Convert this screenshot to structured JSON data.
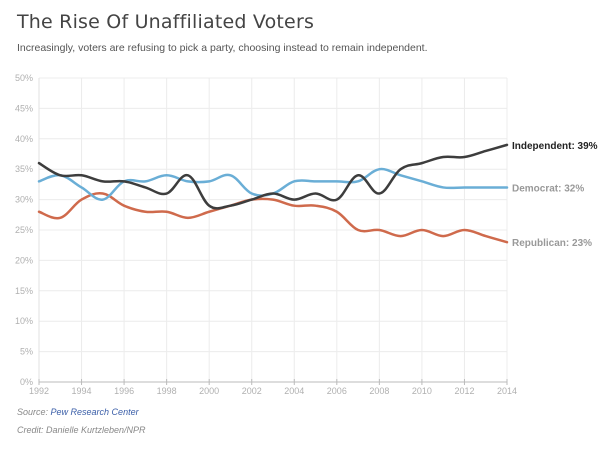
{
  "title": "The Rise Of Unaffiliated Voters",
  "subtitle": "Increasingly, voters are refusing to pick a party, choosing instead to remain independent.",
  "footer": {
    "source_prefix": "Source: ",
    "source_link": "Pew Research Center",
    "credit": "Credit: Danielle Kurtzleben/NPR"
  },
  "chart_data": {
    "type": "line",
    "title": "The Rise Of Unaffiliated Voters",
    "xlabel": "",
    "ylabel": "",
    "x": [
      1992,
      1993,
      1994,
      1995,
      1996,
      1997,
      1998,
      1999,
      2000,
      2001,
      2002,
      2003,
      2004,
      2005,
      2006,
      2007,
      2008,
      2009,
      2010,
      2011,
      2012,
      2013,
      2014
    ],
    "xlim": [
      1992,
      2014
    ],
    "ylim": [
      0,
      50
    ],
    "x_ticks": [
      "1992",
      "1994",
      "1996",
      "1998",
      "2000",
      "2002",
      "2004",
      "2006",
      "2008",
      "2010",
      "2012",
      "2014"
    ],
    "y_ticks": [
      "0%",
      "5%",
      "10%",
      "15%",
      "20%",
      "25%",
      "30%",
      "35%",
      "40%",
      "45%",
      "50%"
    ],
    "grid": true,
    "legend": "end-of-line labels (right)",
    "series": [
      {
        "name": "Independent",
        "label": "Independent: 39%",
        "color": "#3d3d3d",
        "label_color": "#222222",
        "values": [
          36,
          34,
          34,
          33,
          33,
          32,
          31,
          34,
          29,
          29,
          30,
          31,
          30,
          31,
          30,
          34,
          31,
          35,
          36,
          37,
          37,
          38,
          39
        ]
      },
      {
        "name": "Democrat",
        "label": "Democrat: 32%",
        "color": "#6aaed6",
        "label_color": "#999999",
        "values": [
          33,
          34,
          32,
          30,
          33,
          33,
          34,
          33,
          33,
          34,
          31,
          31,
          33,
          33,
          33,
          33,
          35,
          34,
          33,
          32,
          32,
          32,
          32
        ]
      },
      {
        "name": "Republican",
        "label": "Republican: 23%",
        "color": "#cf6a4c",
        "label_color": "#999999",
        "values": [
          28,
          27,
          30,
          31,
          29,
          28,
          28,
          27,
          28,
          29,
          30,
          30,
          29,
          29,
          28,
          25,
          25,
          24,
          25,
          24,
          25,
          24,
          23
        ]
      }
    ]
  }
}
